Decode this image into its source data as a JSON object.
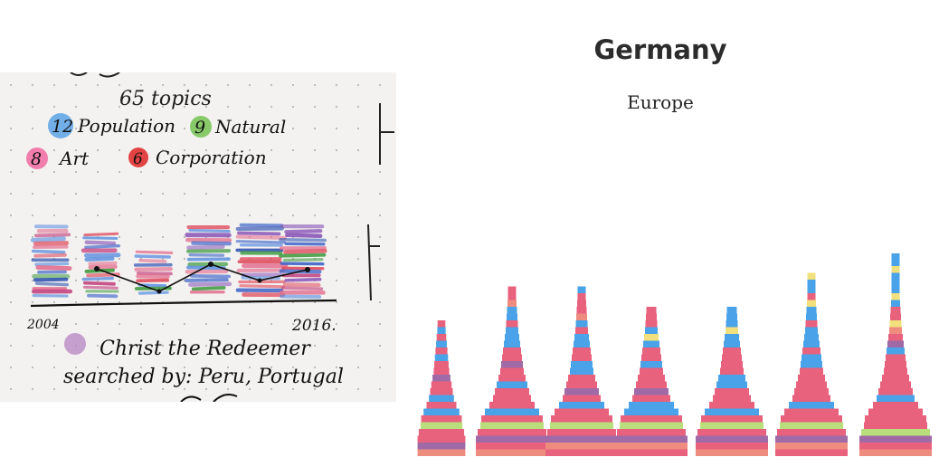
{
  "header": {
    "title": "Germany",
    "subtitle": "Europe"
  },
  "sketch": {
    "total_topics": "65 topics",
    "legend": [
      {
        "count": "12",
        "label": "Population",
        "color": "#5aa2e6"
      },
      {
        "count": "9",
        "label": "Natural",
        "color": "#7cc55a"
      },
      {
        "count": "8",
        "label": "Art",
        "color": "#f06aa0"
      },
      {
        "count": "6",
        "label": "Corporation",
        "color": "#e03030"
      }
    ],
    "year_start": "2004",
    "year_end": "2016.",
    "note_line1": "Christ the Redeemer",
    "note_line2": "searched by: Peru, Portugal"
  },
  "colors": {
    "pink": "#e8617d",
    "blue": "#4aa3e8",
    "purple": "#a06aa6",
    "salmon": "#ef8c80",
    "green": "#b9de7c",
    "yellow": "#f1e07c",
    "lavender": "#9c8fd6"
  },
  "chart_data": {
    "type": "stacked-pyramids",
    "stacks": [
      [
        "salmon",
        "purple",
        "pink",
        "pink",
        "green",
        "pink",
        "blue",
        "pink",
        "blue",
        "pink",
        "pink",
        "purple",
        "pink",
        "pink",
        "blue",
        "pink",
        "blue",
        "pink",
        "blue",
        "pink"
      ],
      [
        "salmon",
        "pink",
        "purple",
        "pink",
        "green",
        "pink",
        "blue",
        "pink",
        "pink",
        "pink",
        "blue",
        "pink",
        "pink",
        "purple",
        "pink",
        "pink",
        "blue",
        "blue",
        "blue",
        "pink",
        "blue",
        "blue",
        "salmon",
        "pink",
        "pink"
      ],
      [
        "pink",
        "salmon",
        "purple",
        "pink",
        "green",
        "pink",
        "pink",
        "blue",
        "pink",
        "purple",
        "pink",
        "pink",
        "blue",
        "blue",
        "pink",
        "pink",
        "blue",
        "blue",
        "pink",
        "blue",
        "salmon",
        "pink",
        "pink",
        "pink",
        "blue"
      ],
      [
        "pink",
        "salmon",
        "purple",
        "pink",
        "green",
        "pink",
        "blue",
        "blue",
        "pink",
        "purple",
        "pink",
        "pink",
        "pink",
        "blue",
        "pink",
        "pink",
        "blue",
        "yellow",
        "blue",
        "pink",
        "pink",
        "pink"
      ],
      [
        "salmon",
        "pink",
        "purple",
        "pink",
        "green",
        "pink",
        "blue",
        "pink",
        "pink",
        "pink",
        "blue",
        "blue",
        "pink",
        "pink",
        "pink",
        "pink",
        "blue",
        "blue",
        "yellow",
        "blue",
        "blue",
        "blue"
      ],
      [
        "pink",
        "salmon",
        "purple",
        "pink",
        "green",
        "pink",
        "pink",
        "blue",
        "pink",
        "pink",
        "pink",
        "pink",
        "pink",
        "blue",
        "blue",
        "pink",
        "blue",
        "blue",
        "blue",
        "pink",
        "blue",
        "blue",
        "yellow",
        "pink",
        "blue",
        "blue",
        "yellow"
      ],
      [
        "salmon",
        "pink",
        "purple",
        "green",
        "pink",
        "pink",
        "pink",
        "pink",
        "blue",
        "pink",
        "pink",
        "pink",
        "pink",
        "pink",
        "pink",
        "blue",
        "purple",
        "pink",
        "salmon",
        "yellow",
        "pink",
        "pink",
        "blue",
        "yellow",
        "blue",
        "blue",
        "blue",
        "yellow",
        "blue",
        "blue"
      ]
    ]
  }
}
